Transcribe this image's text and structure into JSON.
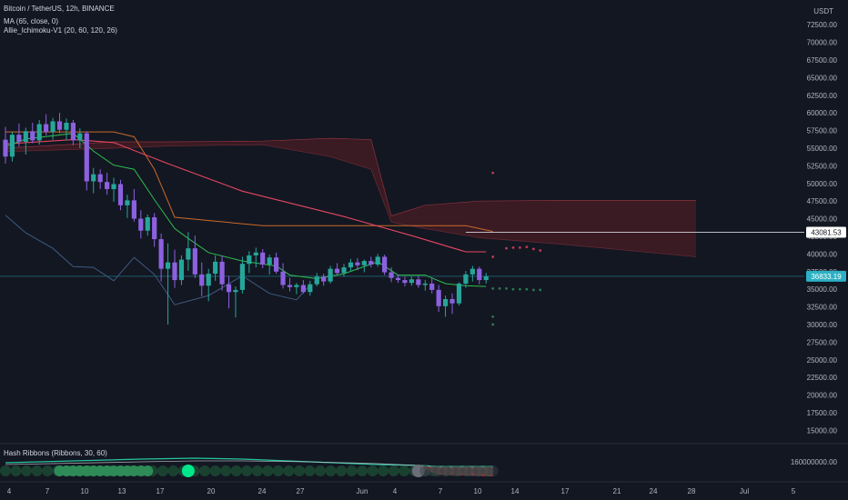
{
  "legend": {
    "symbol": "Bitcoin / TetherUS, 12h, BINANCE",
    "ma": "MA (65, close, 0)",
    "ichimoku": "Allie_Ichimoku-V1 (20, 60, 120, 26)",
    "hash": "Hash Ribbons (Ribbons, 30, 60)"
  },
  "colors": {
    "background": "#131722",
    "up": "#26a69a",
    "down": "#8c61e0",
    "ma": "#e5465f",
    "kijun": "#c96a2a",
    "tenkan": "#2ebd4f",
    "chikou": "#3d5a80",
    "cloud": "#6b1e26",
    "price_tag": "#2bb0c4",
    "ribbon_fast": "#26c6a0",
    "ribbon_slow": "#e0404e"
  },
  "chart_data": {
    "type": "candlestick",
    "symbol": "Bitcoin / TetherUS",
    "interval": "12h",
    "exchange": "BINANCE",
    "y_unit": "USDT",
    "ylim": [
      13500,
      76000
    ],
    "y_ticks": [
      "72500.00",
      "70000.00",
      "67500.00",
      "65000.00",
      "62500.00",
      "60000.00",
      "57500.00",
      "55000.00",
      "52500.00",
      "50000.00",
      "47500.00",
      "45000.00",
      "42500.00",
      "40000.00",
      "37500.00",
      "35000.00",
      "32500.00",
      "30000.00",
      "27500.00",
      "25000.00",
      "22500.00",
      "20000.00",
      "17500.00",
      "15000.00"
    ],
    "x_ticks": [
      "4",
      "7",
      "10",
      "13",
      "17",
      "20",
      "24",
      "27",
      "Jun",
      "4",
      "7",
      "10",
      "14",
      "17",
      "21",
      "24",
      "28",
      "Jul",
      "5"
    ],
    "last_price": "36833.19",
    "line_tag": "43081.53",
    "candles": [
      [
        56200,
        58000,
        52800,
        53800
      ],
      [
        53800,
        57300,
        53100,
        56900
      ],
      [
        56900,
        58500,
        55200,
        55900
      ],
      [
        55900,
        57900,
        54100,
        57400
      ],
      [
        57400,
        58600,
        55700,
        56100
      ],
      [
        56100,
        59000,
        55500,
        58400
      ],
      [
        58400,
        59800,
        56800,
        57300
      ],
      [
        57300,
        59300,
        56200,
        58800
      ],
      [
        58800,
        60000,
        57100,
        57600
      ],
      [
        57600,
        59200,
        56100,
        58600
      ],
      [
        58600,
        59000,
        55400,
        56100
      ],
      [
        56100,
        57800,
        55000,
        57100
      ],
      [
        57100,
        57400,
        49000,
        50300
      ],
      [
        50300,
        52200,
        48600,
        51300
      ],
      [
        51300,
        52000,
        49200,
        50200
      ],
      [
        50200,
        51500,
        48400,
        49200
      ],
      [
        49200,
        50800,
        47400,
        49900
      ],
      [
        49900,
        50500,
        46200,
        46900
      ],
      [
        46900,
        48400,
        45100,
        47600
      ],
      [
        47600,
        49200,
        44600,
        45000
      ],
      [
        45000,
        46200,
        42200,
        43300
      ],
      [
        43300,
        45600,
        42600,
        45200
      ],
      [
        45200,
        45800,
        41000,
        42100
      ],
      [
        42100,
        42900,
        36100,
        37900
      ],
      [
        37900,
        41500,
        30000,
        38800
      ],
      [
        38800,
        40600,
        35200,
        36300
      ],
      [
        36300,
        39800,
        35600,
        39200
      ],
      [
        39200,
        43100,
        37600,
        40800
      ],
      [
        40800,
        42600,
        36600,
        37100
      ],
      [
        37100,
        38800,
        34000,
        35500
      ],
      [
        35500,
        37900,
        33300,
        37200
      ],
      [
        37200,
        39800,
        36200,
        38900
      ],
      [
        38900,
        39800,
        34800,
        35700
      ],
      [
        35700,
        36900,
        32300,
        34600
      ],
      [
        34600,
        35400,
        31000,
        34900
      ],
      [
        34900,
        39600,
        34400,
        38600
      ],
      [
        38600,
        40400,
        37300,
        39800
      ],
      [
        39800,
        40900,
        38100,
        40200
      ],
      [
        40200,
        40700,
        38000,
        38500
      ],
      [
        38500,
        39900,
        37100,
        39500
      ],
      [
        39500,
        40200,
        37200,
        37500
      ],
      [
        37500,
        38700,
        35100,
        35600
      ],
      [
        35600,
        36600,
        34700,
        35300
      ],
      [
        35300,
        35900,
        34300,
        35600
      ],
      [
        35600,
        36300,
        34400,
        34600
      ],
      [
        34600,
        36200,
        34100,
        35700
      ],
      [
        35700,
        37300,
        35400,
        36800
      ],
      [
        36800,
        37200,
        35500,
        36100
      ],
      [
        36100,
        38300,
        35800,
        37900
      ],
      [
        37900,
        38700,
        37100,
        37300
      ],
      [
        37300,
        38600,
        36800,
        38100
      ],
      [
        38100,
        39300,
        37600,
        38800
      ],
      [
        38800,
        39400,
        37700,
        38400
      ],
      [
        38400,
        39200,
        37400,
        39000
      ],
      [
        39000,
        39600,
        38100,
        38500
      ],
      [
        38500,
        40000,
        38200,
        39600
      ],
      [
        39600,
        39900,
        37000,
        37400
      ],
      [
        37400,
        38100,
        36000,
        36600
      ],
      [
        36600,
        37100,
        35900,
        36300
      ],
      [
        36300,
        36800,
        35400,
        35900
      ],
      [
        35900,
        36800,
        35500,
        36400
      ],
      [
        36400,
        36900,
        35200,
        35600
      ],
      [
        35600,
        36300,
        34800,
        35800
      ],
      [
        35800,
        36600,
        34400,
        34900
      ],
      [
        34900,
        35600,
        31800,
        32600
      ],
      [
        32600,
        34100,
        31100,
        33600
      ],
      [
        33600,
        34400,
        31500,
        33000
      ],
      [
        33000,
        36000,
        32700,
        35800
      ],
      [
        35800,
        37600,
        35200,
        37100
      ],
      [
        37100,
        38300,
        36100,
        37900
      ],
      [
        37900,
        38200,
        35700,
        36300
      ],
      [
        36300,
        37300,
        35800,
        36833
      ]
    ],
    "ma65": [
      [
        0,
        55600
      ],
      [
        10,
        56200
      ],
      [
        16,
        55800
      ],
      [
        24,
        52800
      ],
      [
        35,
        48900
      ],
      [
        50,
        45300
      ],
      [
        60,
        42600
      ],
      [
        68,
        40300
      ],
      [
        71,
        40300
      ]
    ],
    "kijun": [
      [
        0,
        57300
      ],
      [
        8,
        57300
      ],
      [
        16,
        57300
      ],
      [
        19,
        56600
      ],
      [
        22,
        52000
      ],
      [
        25,
        45200
      ],
      [
        38,
        44000
      ],
      [
        55,
        44000
      ],
      [
        68,
        44000
      ],
      [
        72,
        43200
      ]
    ],
    "tenkan": [
      [
        0,
        55200
      ],
      [
        3,
        56300
      ],
      [
        10,
        57100
      ],
      [
        13,
        54600
      ],
      [
        16,
        52600
      ],
      [
        19,
        52000
      ],
      [
        22,
        47700
      ],
      [
        25,
        43600
      ],
      [
        27,
        42200
      ],
      [
        30,
        40200
      ],
      [
        35,
        39000
      ],
      [
        40,
        38300
      ],
      [
        42,
        37000
      ],
      [
        46,
        36500
      ],
      [
        50,
        37200
      ],
      [
        55,
        38900
      ],
      [
        58,
        37000
      ],
      [
        62,
        37000
      ],
      [
        65,
        35800
      ],
      [
        68,
        35500
      ],
      [
        71,
        35400
      ]
    ],
    "chikou": [
      [
        0,
        45500
      ],
      [
        3,
        43000
      ],
      [
        7,
        40800
      ],
      [
        10,
        38200
      ],
      [
        13,
        38100
      ],
      [
        16,
        36200
      ],
      [
        19,
        39500
      ],
      [
        22,
        37100
      ],
      [
        25,
        32800
      ],
      [
        30,
        34100
      ],
      [
        35,
        36900
      ],
      [
        39,
        34400
      ],
      [
        43,
        33500
      ],
      [
        45,
        35600
      ]
    ],
    "cloud_a": [
      [
        0,
        55000
      ],
      [
        16,
        55900
      ],
      [
        24,
        55900
      ],
      [
        38,
        56000
      ],
      [
        48,
        56400
      ],
      [
        54,
        56200
      ],
      [
        57,
        45400
      ],
      [
        62,
        46900
      ],
      [
        70,
        47500
      ],
      [
        82,
        47600
      ],
      [
        102,
        47600
      ]
    ],
    "cloud_b": [
      [
        0,
        54500
      ],
      [
        16,
        55000
      ],
      [
        24,
        55300
      ],
      [
        38,
        55500
      ],
      [
        48,
        53800
      ],
      [
        54,
        52000
      ],
      [
        57,
        44500
      ],
      [
        62,
        43600
      ],
      [
        70,
        42300
      ],
      [
        82,
        41400
      ],
      [
        102,
        39600
      ]
    ],
    "projection_dots": [
      [
        72,
        51500
      ],
      [
        74,
        40800
      ],
      [
        75,
        40900
      ],
      [
        76,
        40900
      ],
      [
        77,
        41000
      ],
      [
        78,
        40700
      ],
      [
        79,
        40500
      ],
      [
        72,
        39600
      ],
      [
        72,
        35100
      ],
      [
        73,
        35100
      ],
      [
        74,
        35100
      ],
      [
        75,
        35000
      ],
      [
        76,
        35000
      ],
      [
        77,
        35000
      ],
      [
        78,
        34900
      ],
      [
        79,
        34900
      ],
      [
        72,
        31100
      ],
      [
        72,
        30000
      ]
    ],
    "hash_ribbons": {
      "scale_label": "160000000.00",
      "bottom_circles": [
        0,
        1,
        2,
        3,
        4,
        5,
        6,
        7,
        8,
        9,
        10,
        11,
        12,
        13,
        14,
        15,
        16,
        17,
        18,
        19,
        20,
        21,
        22,
        23,
        24,
        25,
        26,
        27,
        28,
        29,
        30,
        31,
        32,
        33,
        34,
        35,
        36,
        37,
        38,
        39,
        40,
        41,
        42,
        43,
        44,
        45,
        46
      ],
      "highlight_circles": [
        8,
        9,
        10,
        11,
        12,
        13,
        14,
        15,
        16,
        17,
        18,
        19,
        20,
        21
      ],
      "buy_signal": 27,
      "grey_signal": 61
    }
  }
}
